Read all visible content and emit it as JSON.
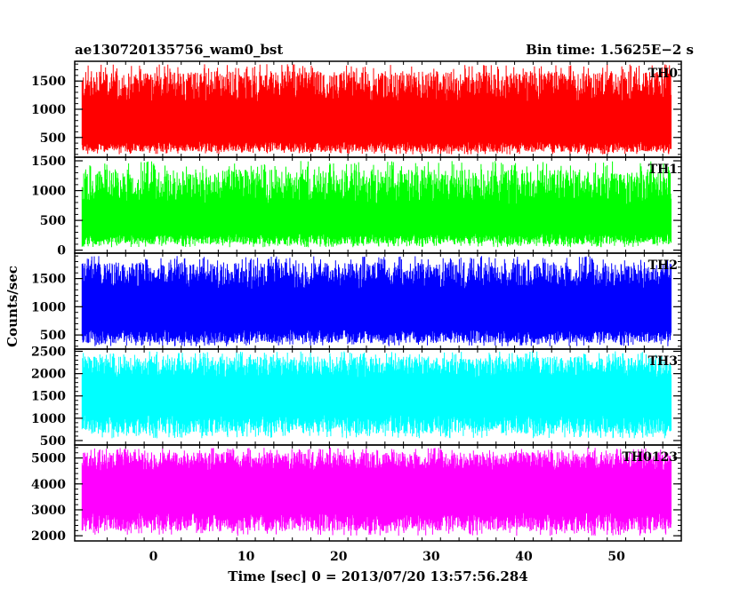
{
  "header": {
    "left_title": "ae130720135756_wam0_bst",
    "right_title": "Bin time: 1.5625E−2 s"
  },
  "chart_data": {
    "type": "line",
    "xlabel": "Time [sec] 0 = 2013/07/20 13:57:56.284",
    "ylabel": "Counts/sec",
    "xlim": [
      -8.5,
      57
    ],
    "x_ticks": [
      0,
      10,
      20,
      30,
      40,
      50
    ],
    "x_tick_labels": [
      "0",
      "10",
      "20",
      "30",
      "40",
      "50"
    ],
    "x_data_range": [
      -7.7,
      55.9
    ],
    "bin_time_s": 0.015625,
    "panels": [
      {
        "name": "TH0",
        "color": "#ff0000",
        "ylim": [
          150,
          1850
        ],
        "y_ticks": [
          500,
          1000,
          1500
        ],
        "y_tick_labels": [
          "500",
          "1000",
          "1500"
        ],
        "typical_range": [
          350,
          1350
        ],
        "peak_max": 1800,
        "trough_min": 200
      },
      {
        "name": "TH1",
        "color": "#00ff00",
        "ylim": [
          -50,
          1560
        ],
        "y_ticks": [
          0,
          500,
          1000,
          1500
        ],
        "y_tick_labels": [
          "0",
          "500",
          "1000",
          "1500"
        ],
        "typical_range": [
          200,
          1000
        ],
        "peak_max": 1500,
        "trough_min": 50
      },
      {
        "name": "TH2",
        "color": "#0000ff",
        "ylim": [
          250,
          1950
        ],
        "y_ticks": [
          500,
          1000,
          1500
        ],
        "y_tick_labels": [
          "500",
          "1000",
          "1500"
        ],
        "typical_range": [
          500,
          1500
        ],
        "peak_max": 1900,
        "trough_min": 300
      },
      {
        "name": "TH3",
        "color": "#00ffff",
        "ylim": [
          400,
          2550
        ],
        "y_ticks": [
          500,
          1000,
          1500,
          2000,
          2500
        ],
        "y_tick_labels": [
          "500",
          "1000",
          "1500",
          "2000",
          "2500"
        ],
        "typical_range": [
          900,
          2100
        ],
        "peak_max": 2500,
        "trough_min": 550
      },
      {
        "name": "TH0123",
        "color": "#ff00ff",
        "ylim": [
          1800,
          5500
        ],
        "y_ticks": [
          2000,
          3000,
          4000,
          5000
        ],
        "y_tick_labels": [
          "2000",
          "3000",
          "4000",
          "5000"
        ],
        "typical_range": [
          2600,
          4800
        ],
        "peak_max": 5400,
        "trough_min": 2000
      }
    ]
  }
}
